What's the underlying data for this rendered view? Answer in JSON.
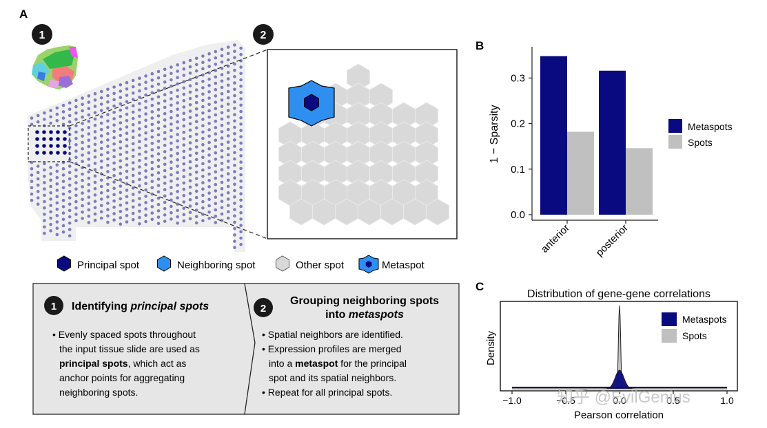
{
  "panels": {
    "a": "A",
    "b": "B",
    "c": "C"
  },
  "steps": {
    "one": "1",
    "two": "2"
  },
  "legend_a": {
    "principal": "Principal spot",
    "neighboring": "Neighboring spot",
    "other": "Other spot",
    "metaspot": "Metaspot"
  },
  "box1": {
    "title_plain": "Identifying ",
    "title_italic": "principal spots",
    "lines": [
      "• Evenly spaced spots throughout",
      "the input tissue slide are used as",
      "anchor points for aggregating",
      "neighboring spots."
    ],
    "bold_line_bold": "principal spots",
    "bold_line_rest": ", which act as"
  },
  "box2": {
    "title_line1": "Grouping neighboring spots",
    "title_line2_plain": "into ",
    "title_line2_italic": "metaspots",
    "line1": "• Spatial neighbors are identified.",
    "line2": "• Expression profiles are merged",
    "line3_pre": "into a ",
    "line3_bold": "metaspot",
    "line3_post": " for the principal",
    "line4": "spot and its spatial neighbors.",
    "line5": "• Repeat for all principal spots."
  },
  "colors": {
    "metaspots": "#0a0a80",
    "spots": "#c0c0c0",
    "neighbor": "#2e8ff0",
    "tissue_dot": "#7b7bbf"
  },
  "chart_data": [
    {
      "type": "bar",
      "categories": [
        "anterior",
        "posterior"
      ],
      "series": [
        {
          "name": "Metaspots",
          "values": [
            0.348,
            0.316
          ]
        },
        {
          "name": "Spots",
          "values": [
            0.182,
            0.146
          ]
        }
      ],
      "ylabel": "1 − Sparsity",
      "xlabel": "",
      "ylim": [
        0,
        0.37
      ],
      "yticks": [
        0.0,
        0.1,
        0.2,
        0.3
      ],
      "ytick_labels": [
        "0.0",
        "0.1",
        "0.2",
        "0.3"
      ],
      "legend": [
        "Metaspots",
        "Spots"
      ],
      "legend_position": "right"
    },
    {
      "type": "area",
      "title": "Distribution of gene-gene correlations",
      "xlabel": "Pearson correlation",
      "ylabel": "Density",
      "xlim": [
        -1.0,
        1.0
      ],
      "xticks": [
        -1.0,
        -0.5,
        0.0,
        0.5,
        1.0
      ],
      "xtick_labels": [
        "−1.0",
        "−0.5",
        "0.0",
        "0.5",
        "1.0"
      ],
      "series": [
        {
          "name": "Metaspots",
          "peak_x": 0.0,
          "spread": 0.04
        },
        {
          "name": "Spots",
          "peak_x": 0.0,
          "spread": 0.01
        }
      ],
      "legend": [
        "Metaspots",
        "Spots"
      ],
      "legend_position": "top-right"
    }
  ],
  "watermark": "知乎 @EvilGenius"
}
